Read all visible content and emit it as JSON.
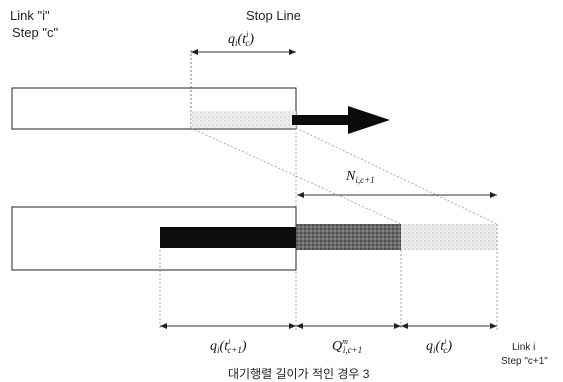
{
  "labels": {
    "link_line1": "Link \"i\"",
    "link_line2": "Step \"c\"",
    "stop_line": "Stop Line",
    "link_bottom_line1": "Link i",
    "link_bottom_line2": "Step \"c+1\"",
    "caption": "대기행렬 길이가 적인 경우 3"
  },
  "math": {
    "q_top": {
      "base": "q",
      "sub": "i",
      "paren_var": "t",
      "paren_sub": "c",
      "paren_sup": "i"
    },
    "N": {
      "base": "N",
      "sub": "i,c+1"
    },
    "q_left": {
      "base": "q",
      "sub": "i",
      "paren_var": "t",
      "paren_sub": "c+1",
      "paren_sup": "i"
    },
    "Q_mid": {
      "base": "Q",
      "sub": "i,c+1",
      "sup": "m"
    },
    "q_right": {
      "base": "q",
      "sub": "i",
      "paren_var": "t",
      "paren_sub": "c",
      "paren_sup": "i"
    }
  },
  "colors": {
    "black_bar": "#0c0c0c",
    "dark_dotted": "#5a5a5a",
    "light_dotted": "#d9d9d9",
    "arrow": "#0b0b0b"
  }
}
